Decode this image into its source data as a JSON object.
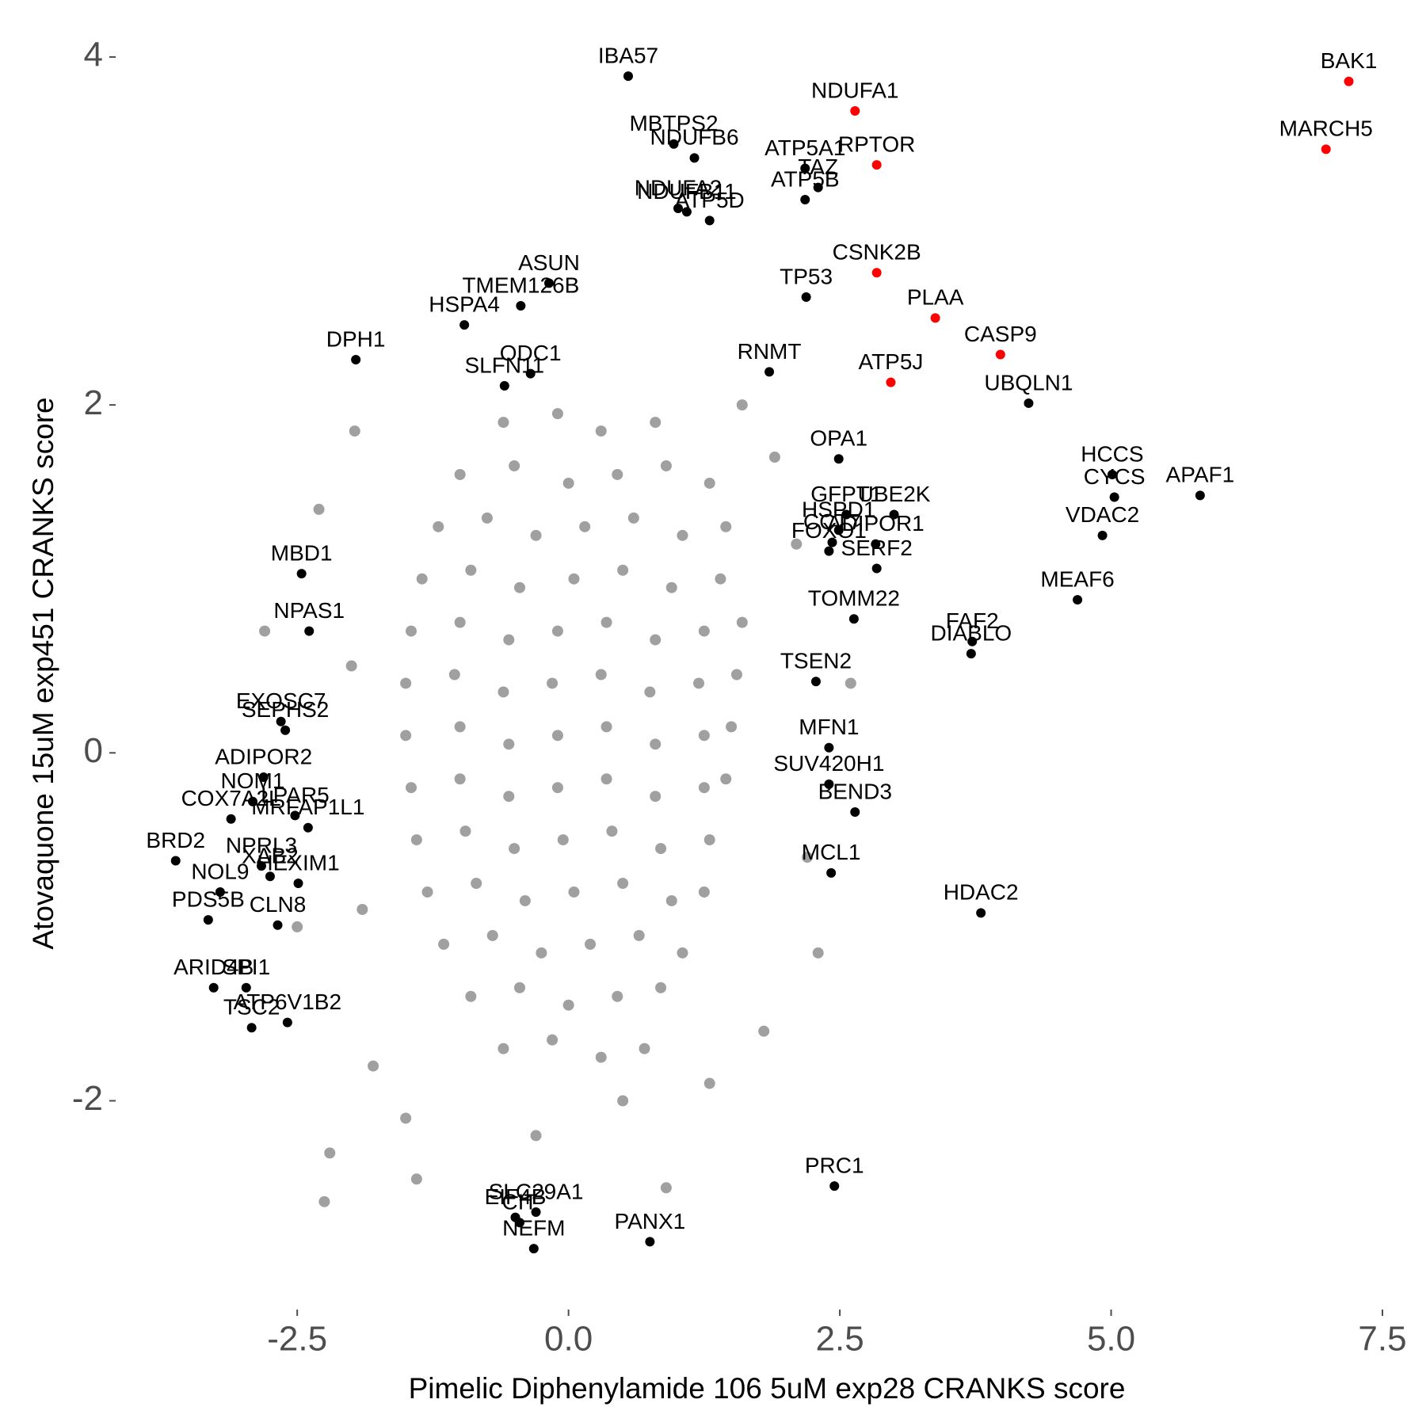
{
  "chart_data": {
    "type": "scatter",
    "x_label": "Pimelic Diphenylamide 106 5uM exp28 CRANKS score",
    "y_label": "Atovaquone 15uM exp451 CRANKS score",
    "xlim": [
      -4.1,
      7.5
    ],
    "ylim": [
      -3.2,
      4.1
    ],
    "xticks": [
      -2.5,
      {
        "value": 0,
        "label": "0.0"
      },
      2.5,
      {
        "value": 5,
        "label": "5.0"
      },
      7.5
    ],
    "yticks": [
      -2,
      0,
      2,
      4
    ],
    "series": [
      {
        "color": "#a0a0a0",
        "x": [
          -0.6,
          -0.1,
          0.3,
          0.8,
          -1.0,
          -0.5,
          0.0,
          0.45,
          0.9,
          1.3,
          -1.2,
          -0.75,
          -0.3,
          0.15,
          0.6,
          1.05,
          1.45,
          -1.35,
          -0.9,
          -0.45,
          0.05,
          0.5,
          0.95,
          1.4,
          -1.45,
          -1.0,
          -0.55,
          -0.1,
          0.35,
          0.8,
          1.25,
          1.6,
          -1.5,
          -1.05,
          -0.6,
          -0.15,
          0.3,
          0.75,
          1.2,
          1.55,
          -1.5,
          -1.0,
          -0.55,
          -0.1,
          0.35,
          0.8,
          1.25,
          1.5,
          -1.45,
          -1.0,
          -0.55,
          -0.1,
          0.35,
          0.8,
          1.25,
          1.45,
          -1.4,
          -0.95,
          -0.5,
          -0.05,
          0.4,
          0.85,
          1.3,
          -1.3,
          -0.85,
          -0.4,
          0.05,
          0.5,
          0.95,
          1.25,
          -1.15,
          -0.7,
          -0.25,
          0.2,
          0.65,
          1.05,
          -0.9,
          -0.45,
          0.0,
          0.45,
          0.85,
          -0.6,
          -0.15,
          0.3,
          0.7,
          -2.8,
          -1.97,
          -2.3,
          -2.2,
          -2.25,
          -1.4,
          -1.8,
          1.9,
          2.1,
          2.2,
          1.8,
          0.9,
          -0.3,
          2.6,
          2.3,
          -2.0,
          -1.9,
          1.6,
          -1.5,
          0.5,
          1.3,
          -2.5
        ],
        "values": [
          1.9,
          1.95,
          1.85,
          1.9,
          1.6,
          1.65,
          1.55,
          1.6,
          1.65,
          1.55,
          1.3,
          1.35,
          1.25,
          1.3,
          1.35,
          1.25,
          1.3,
          1.0,
          1.05,
          0.95,
          1.0,
          1.05,
          0.95,
          1.0,
          0.7,
          0.75,
          0.65,
          0.7,
          0.75,
          0.65,
          0.7,
          0.75,
          0.4,
          0.45,
          0.35,
          0.4,
          0.45,
          0.35,
          0.4,
          0.45,
          0.1,
          0.15,
          0.05,
          0.1,
          0.15,
          0.05,
          0.1,
          0.15,
          -0.2,
          -0.15,
          -0.25,
          -0.2,
          -0.15,
          -0.25,
          -0.2,
          -0.15,
          -0.5,
          -0.45,
          -0.55,
          -0.5,
          -0.45,
          -0.55,
          -0.5,
          -0.8,
          -0.75,
          -0.85,
          -0.8,
          -0.75,
          -0.85,
          -0.8,
          -1.1,
          -1.05,
          -1.15,
          -1.1,
          -1.05,
          -1.15,
          -1.4,
          -1.35,
          -1.45,
          -1.4,
          -1.35,
          -1.7,
          -1.65,
          -1.75,
          -1.7,
          0.7,
          1.85,
          1.4,
          -2.3,
          -2.58,
          -2.45,
          -1.8,
          1.7,
          1.2,
          -0.6,
          -1.6,
          -2.5,
          -2.2,
          0.4,
          -1.15,
          0.5,
          -0.9,
          2.0,
          -2.1,
          -2.0,
          -1.9,
          -1.0
        ]
      },
      {
        "color": "#000000",
        "x": [
          0.55,
          0.97,
          1.16,
          2.18,
          2.3,
          2.18,
          1.09,
          1.01,
          1.3,
          -0.18,
          2.19,
          -0.44,
          -0.96,
          -1.96,
          -0.35,
          -0.59,
          1.85,
          4.24,
          2.49,
          5.01,
          5.82,
          5.03,
          2.56,
          3.0,
          2.49,
          2.43,
          2.4,
          2.83,
          4.92,
          2.84,
          -2.46,
          4.69,
          2.63,
          -2.39,
          3.72,
          3.71,
          2.28,
          -2.65,
          -2.61,
          2.4,
          -2.81,
          2.4,
          -2.91,
          -2.52,
          2.64,
          -3.11,
          -2.4,
          -3.62,
          -2.83,
          -2.75,
          2.42,
          -2.49,
          -3.21,
          3.8,
          -3.32,
          -2.68,
          -3.27,
          -2.97,
          -2.92,
          -2.59,
          -0.3,
          -0.49,
          -0.45,
          -0.32,
          0.75,
          2.45
        ],
        "values": [
          3.89,
          3.5,
          3.42,
          3.36,
          3.25,
          3.18,
          3.11,
          3.13,
          3.06,
          2.7,
          2.62,
          2.57,
          2.46,
          2.26,
          2.18,
          2.11,
          2.19,
          2.01,
          1.69,
          1.6,
          1.48,
          1.47,
          1.37,
          1.37,
          1.28,
          1.21,
          1.16,
          1.2,
          1.25,
          1.06,
          1.03,
          0.88,
          0.77,
          0.7,
          0.64,
          0.57,
          0.41,
          0.18,
          0.13,
          0.03,
          -0.14,
          -0.18,
          -0.28,
          -0.36,
          -0.34,
          -0.38,
          -0.43,
          -0.62,
          -0.65,
          -0.71,
          -0.69,
          -0.75,
          -0.8,
          -0.92,
          -0.96,
          -0.99,
          -1.35,
          -1.35,
          -1.58,
          -1.55,
          -2.64,
          -2.67,
          -2.7,
          -2.85,
          -2.81,
          -2.49
        ],
        "labels": [
          "IBA57",
          "MBTPS2",
          "NDUFB6",
          "ATP5A1",
          "TAZ",
          "ATP5B",
          "NDUFB11",
          "NDUFA2",
          "ATP5D",
          "ASUN",
          "TP53",
          "TMEM126B",
          "HSPA4",
          "DPH1",
          "ODC1",
          "SLFN11",
          "RNMT",
          "UBQLN1",
          "OPA1",
          "HCCS",
          "APAF1",
          "CYCS",
          "GFPT1",
          "UBE2K",
          "HSPD1",
          "CCT7",
          "FOXO1",
          "ADIPOR1",
          "VDAC2",
          "SERF2",
          "MBD1",
          "MEAF6",
          "TOMM22",
          "NPAS1",
          "FAF2",
          "DIABLO",
          "TSEN2",
          "EXOSC7",
          "SEPHS2",
          "MFN1",
          "ADIPOR2",
          "SUV420H1",
          "NOM1",
          "LPAR5",
          "BEND3",
          "COX7A2L",
          "MRFAP1L1",
          "BRD2",
          "NPRL3",
          "XAB2",
          "MCL1",
          "HEXIM1",
          "NOL9",
          "HDAC2",
          "PDS5B",
          "CLN8",
          "ARID4B",
          "SPI1",
          "TSC2",
          "ATP6V1B2",
          "SLC29A1",
          "EIF4B",
          "CIT",
          "NEFM",
          "PANX1",
          "PRC1"
        ]
      },
      {
        "color": "#ff0000",
        "x": [
          2.64,
          2.84,
          7.19,
          6.98,
          2.84,
          3.38,
          3.98,
          2.97
        ],
        "values": [
          3.69,
          3.38,
          3.86,
          3.47,
          2.76,
          2.5,
          2.29,
          2.13
        ],
        "labels": [
          "NDUFA1",
          "RPTOR",
          "BAK1",
          "MARCH5",
          "CSNK2B",
          "PLAA",
          "CASP9",
          "ATP5J"
        ]
      }
    ]
  }
}
